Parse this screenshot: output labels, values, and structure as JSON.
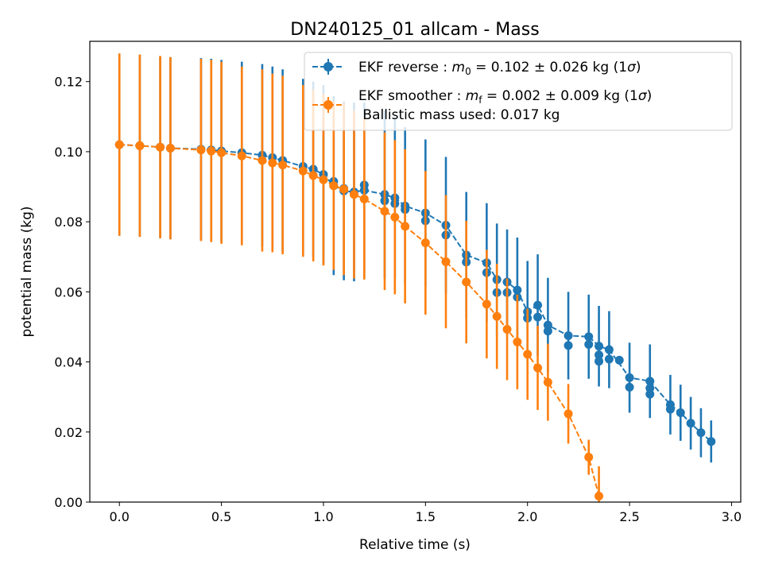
{
  "chart_data": {
    "type": "scatter",
    "title": "DN240125_01 allcam - Mass",
    "xlabel": "Relative time (s)",
    "ylabel": "potential mass (kg)",
    "xlim": [
      -0.145,
      3.045
    ],
    "ylim": [
      0,
      0.1315
    ],
    "xticks": [
      "0.0",
      "0.5",
      "1.0",
      "1.5",
      "2.0",
      "2.5",
      "3.0"
    ],
    "yticks": [
      "0.00",
      "0.02",
      "0.04",
      "0.06",
      "0.08",
      "0.10",
      "0.12"
    ],
    "legend_position": "top-right",
    "legend": {
      "reverse": {
        "text": "EKF reverse : ",
        "sym": "m",
        "sub": "0",
        "rest": " =  0.102 ± 0.026 kg (1",
        "sigma": "σ",
        "close": ")"
      },
      "smoother": {
        "text": "EKF smoother : ",
        "sym": "m",
        "sub": "f",
        "rest": " =  0.002 ± 0.009 kg (1",
        "sigma": "σ",
        "close": ")"
      },
      "ballistic": " Ballistic mass used: 0.017 kg"
    },
    "colors": {
      "reverse": "#1f77b4",
      "smoother": "#ff7f0e"
    },
    "series": [
      {
        "name": "EKF reverse",
        "color": "#1f77b4",
        "points": [
          [
            0.0,
            0.102,
            0.026
          ],
          [
            0.1,
            0.1017,
            0.026
          ],
          [
            0.2,
            0.1013,
            0.026
          ],
          [
            0.25,
            0.101,
            0.026
          ],
          [
            0.4,
            0.1007,
            0.026
          ],
          [
            0.45,
            0.1005,
            0.026
          ],
          [
            0.5,
            0.1002,
            0.026
          ],
          [
            0.6,
            0.0997,
            0.026
          ],
          [
            0.7,
            0.099,
            0.026
          ],
          [
            0.75,
            0.0983,
            0.026
          ],
          [
            0.8,
            0.0975,
            0.026
          ],
          [
            0.9,
            0.0958,
            0.025
          ],
          [
            0.95,
            0.095,
            0.025
          ],
          [
            1.0,
            0.0935,
            0.0255
          ],
          [
            1.05,
            0.0903,
            0.0255
          ],
          [
            1.1,
            0.0888,
            0.0255
          ],
          [
            1.15,
            0.0885,
            0.0255
          ],
          [
            1.2,
            0.089,
            0.025
          ],
          [
            1.3,
            0.0878,
            0.024
          ],
          [
            1.35,
            0.0868,
            0.023
          ],
          [
            1.4,
            0.0845,
            0.0225
          ],
          [
            1.5,
            0.0825,
            0.021
          ],
          [
            1.6,
            0.079,
            0.0195
          ],
          [
            1.7,
            0.0705,
            0.018
          ],
          [
            1.8,
            0.0683,
            0.017
          ],
          [
            1.85,
            0.0635,
            0.016
          ],
          [
            1.9,
            0.0628,
            0.015
          ],
          [
            1.95,
            0.0605,
            0.015
          ],
          [
            2.0,
            0.0543,
            0.0145
          ],
          [
            2.05,
            0.0562,
            0.0145
          ],
          [
            2.1,
            0.0505,
            0.0135
          ],
          [
            2.2,
            0.0475,
            0.0125
          ],
          [
            2.3,
            0.0472,
            0.012
          ],
          [
            2.35,
            0.0445,
            0.0115
          ],
          [
            2.4,
            0.0435,
            0.011
          ],
          [
            2.5,
            0.0355,
            0.01
          ],
          [
            2.6,
            0.0345,
            0.0105
          ],
          [
            2.7,
            0.0278,
            0.0085
          ],
          [
            2.75,
            0.0255,
            0.008
          ],
          [
            2.8,
            0.0225,
            0.0075
          ],
          [
            2.85,
            0.0198,
            0.007
          ],
          [
            2.9,
            0.0173,
            0.006
          ]
        ],
        "extra_points": [
          [
            1.05,
            0.0915
          ],
          [
            1.1,
            0.0895
          ],
          [
            1.2,
            0.0905
          ],
          [
            1.3,
            0.086
          ],
          [
            1.35,
            0.0852
          ],
          [
            1.4,
            0.0835
          ],
          [
            1.5,
            0.0803
          ],
          [
            1.6,
            0.0762
          ],
          [
            1.7,
            0.0685
          ],
          [
            1.8,
            0.0655
          ],
          [
            1.85,
            0.0598
          ],
          [
            1.9,
            0.0598
          ],
          [
            1.95,
            0.0585
          ],
          [
            2.0,
            0.0525
          ],
          [
            2.05,
            0.0528
          ],
          [
            2.1,
            0.0488
          ],
          [
            2.2,
            0.0447
          ],
          [
            2.3,
            0.045
          ],
          [
            2.35,
            0.042
          ],
          [
            2.35,
            0.0402
          ],
          [
            2.4,
            0.0408
          ],
          [
            2.45,
            0.0405
          ],
          [
            2.5,
            0.0328
          ],
          [
            2.6,
            0.0325
          ],
          [
            2.6,
            0.0308
          ],
          [
            2.7,
            0.0265
          ]
        ]
      },
      {
        "name": "EKF smoother",
        "color": "#ff7f0e",
        "points": [
          [
            0.0,
            0.102,
            0.026
          ],
          [
            0.1,
            0.1017,
            0.026
          ],
          [
            0.2,
            0.1013,
            0.026
          ],
          [
            0.25,
            0.101,
            0.026
          ],
          [
            0.4,
            0.1005,
            0.026
          ],
          [
            0.45,
            0.1002,
            0.026
          ],
          [
            0.5,
            0.0997,
            0.026
          ],
          [
            0.6,
            0.0988,
            0.0255
          ],
          [
            0.7,
            0.0975,
            0.026
          ],
          [
            0.75,
            0.0968,
            0.0255
          ],
          [
            0.8,
            0.0962,
            0.0255
          ],
          [
            0.9,
            0.0945,
            0.0245
          ],
          [
            0.95,
            0.0932,
            0.0245
          ],
          [
            1.0,
            0.092,
            0.0245
          ],
          [
            1.05,
            0.0903,
            0.024
          ],
          [
            1.1,
            0.0893,
            0.0245
          ],
          [
            1.15,
            0.0878,
            0.024
          ],
          [
            1.2,
            0.0865,
            0.023
          ],
          [
            1.3,
            0.083,
            0.0225
          ],
          [
            1.35,
            0.0813,
            0.022
          ],
          [
            1.4,
            0.0787,
            0.022
          ],
          [
            1.5,
            0.074,
            0.0205
          ],
          [
            1.6,
            0.0686,
            0.019
          ],
          [
            1.7,
            0.0628,
            0.0175
          ],
          [
            1.8,
            0.0565,
            0.0155
          ],
          [
            1.85,
            0.053,
            0.015
          ],
          [
            1.9,
            0.0493,
            0.0145
          ],
          [
            1.95,
            0.0457,
            0.0135
          ],
          [
            2.0,
            0.0422,
            0.013
          ],
          [
            2.05,
            0.0383,
            0.012
          ],
          [
            2.1,
            0.0342,
            0.011
          ],
          [
            2.2,
            0.0252,
            0.0085
          ],
          [
            2.3,
            0.0128,
            0.005
          ],
          [
            2.35,
            0.0017,
            0.0085
          ]
        ]
      }
    ]
  }
}
